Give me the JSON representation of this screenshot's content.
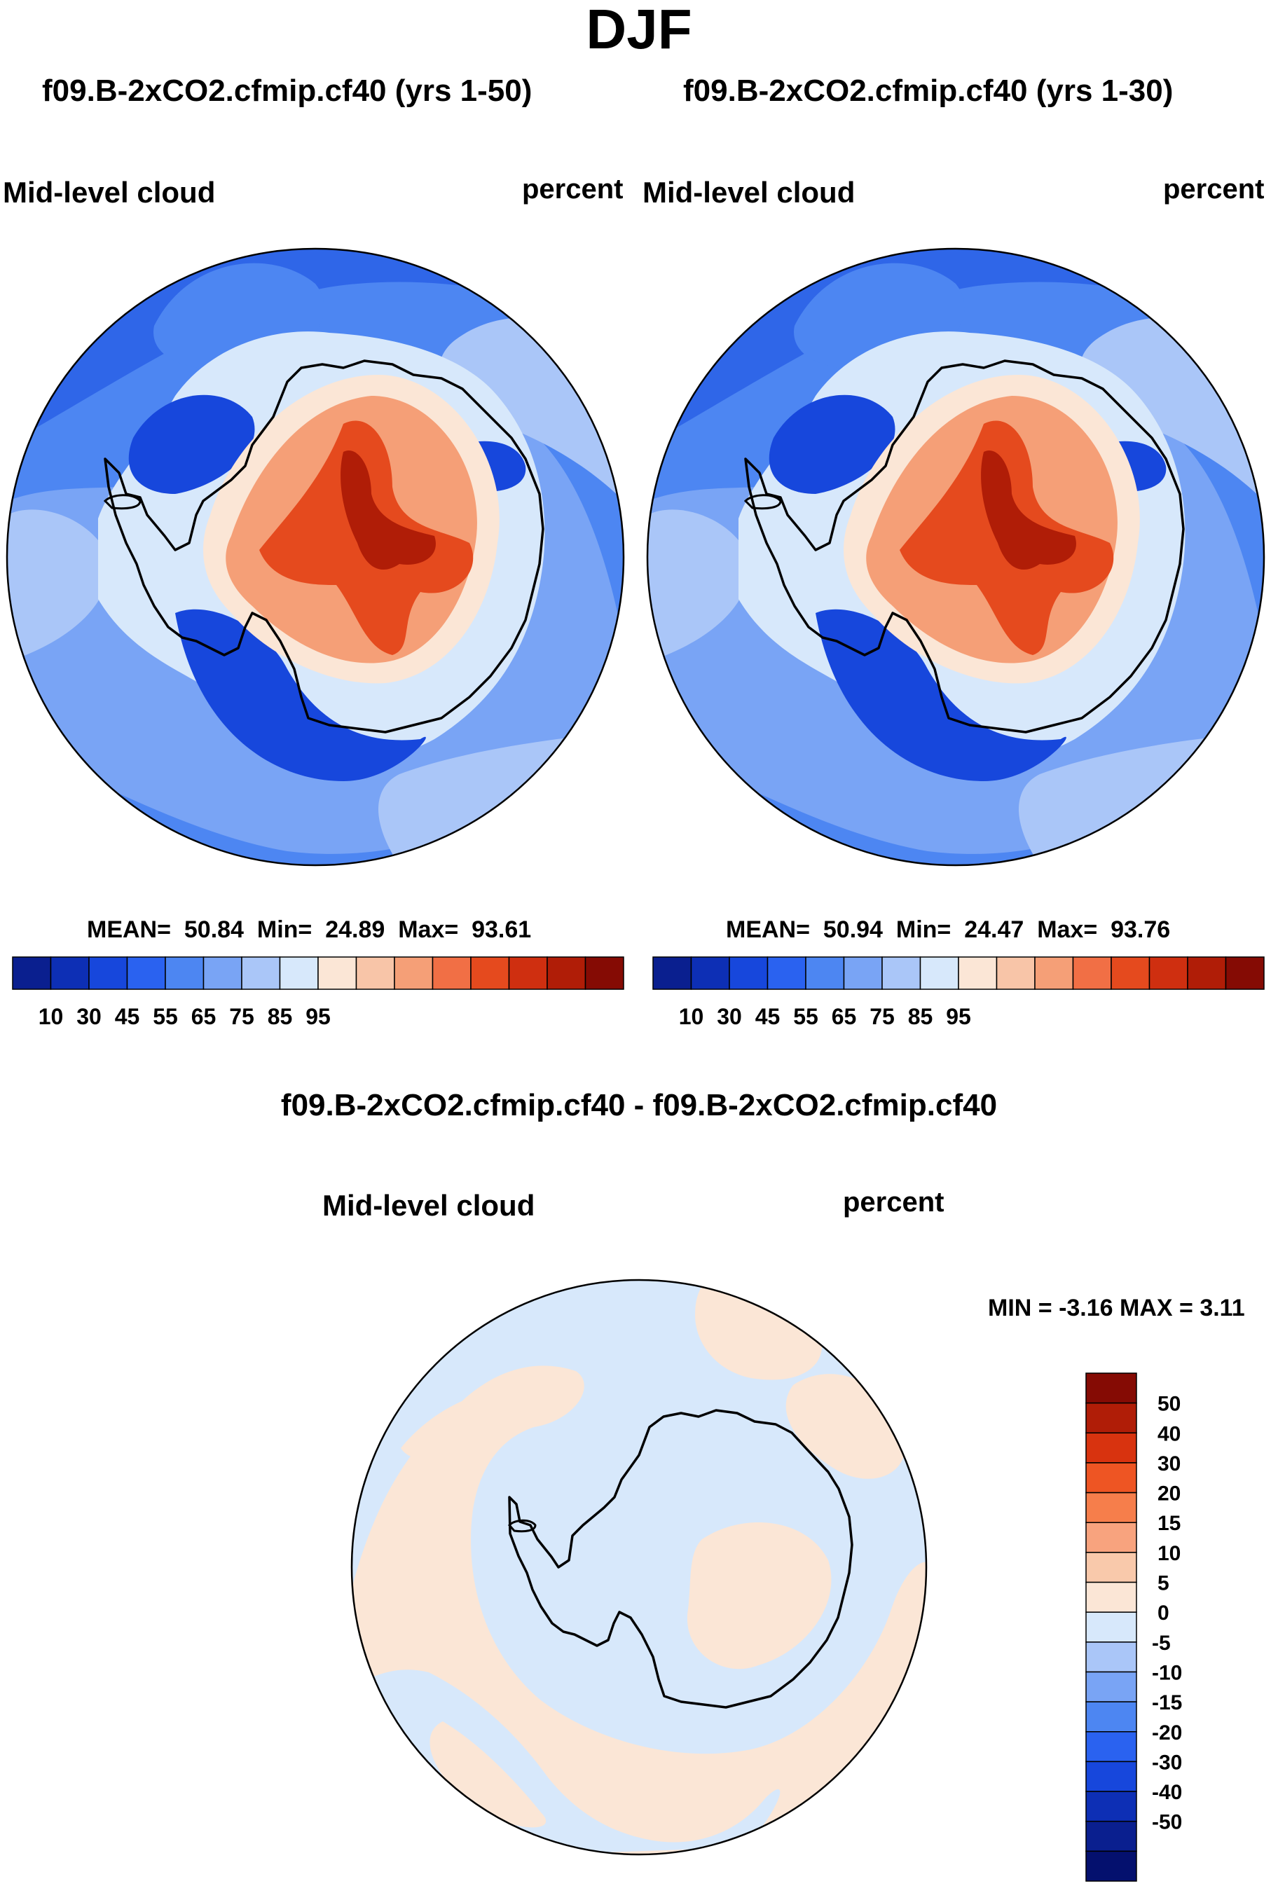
{
  "header": {
    "season": "DJF"
  },
  "panels": [
    {
      "case": "f09.B-2xCO2.cfmip.cf40 (yrs 1-50)",
      "variable": "Mid-level cloud",
      "units": "percent",
      "stats": {
        "mean_label": "MEAN=",
        "mean": "50.84",
        "min_label": "Min=",
        "min": "24.89",
        "max_label": "Max=",
        "max": "93.61"
      }
    },
    {
      "case": "f09.B-2xCO2.cfmip.cf40 (yrs 1-30)",
      "variable": "Mid-level cloud",
      "units": "percent",
      "stats": {
        "mean_label": "MEAN=",
        "mean": "50.94",
        "min_label": "Min=",
        "min": "24.47",
        "max_label": "Max=",
        "max": "93.76"
      }
    }
  ],
  "difference": {
    "title": "f09.B-2xCO2.cfmip.cf40 - f09.B-2xCO2.cfmip.cf40",
    "variable": "Mid-level cloud",
    "units": "percent",
    "stats_text": "MIN =  -3.16 MAX =   3.11"
  },
  "colorbar": {
    "colors": [
      "#0a1f8f",
      "#0d2fb5",
      "#1747dc",
      "#2a62f0",
      "#4d86f2",
      "#79a4f5",
      "#aac6f8",
      "#d7e8fb",
      "#fbe6d6",
      "#f8c5a8",
      "#f59f77",
      "#f16f45",
      "#e54a1e",
      "#cf2f10",
      "#b01d07",
      "#850b04"
    ],
    "tick_labels": [
      "10",
      "30",
      "45",
      "55",
      "65",
      "75",
      "85",
      "95"
    ]
  },
  "diff_colorbar": {
    "colors": [
      "#850b04",
      "#b01d07",
      "#d8330f",
      "#ee5523",
      "#f67e4b",
      "#f8a37e",
      "#f9c9ab",
      "#fbe6d6",
      "#d7e8fb",
      "#aac6f8",
      "#79a4f5",
      "#4d86f2",
      "#2a62f0",
      "#1747dc",
      "#0d2fb5",
      "#0a1f8f",
      "#04106e"
    ],
    "tick_labels": [
      "50",
      "40",
      "30",
      "20",
      "15",
      "10",
      "5",
      "0",
      "-5",
      "-10",
      "-15",
      "-20",
      "-30",
      "-40",
      "-50"
    ]
  },
  "map_colors": {
    "ocean_deep": "#2f66e8",
    "ocean_mid": "#4d86f2",
    "ocean_light": "#79a4f5",
    "ocean_pale": "#aac6f8",
    "diff_neg": "#d7e8fb",
    "diff_pos": "#fbe6d6"
  }
}
